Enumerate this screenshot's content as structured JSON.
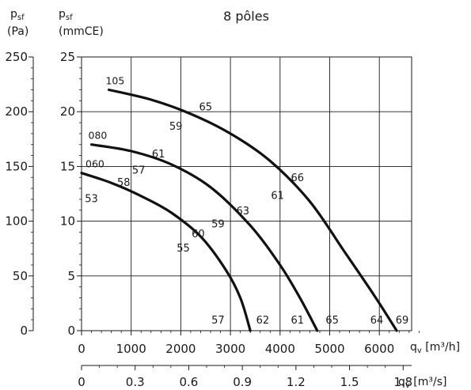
{
  "chart_data": {
    "type": "line",
    "title": "8 pôles",
    "colors": {
      "green": "#2e7d4f",
      "blue": "#3b4fa0",
      "axis": "#1a1a1a",
      "grid": "#1a1a1a"
    },
    "left_axis": {
      "sub": "sf",
      "base": "p",
      "unit": "(Pa)",
      "ticks": [
        "0",
        "50",
        "100",
        "150",
        "200",
        "250"
      ]
    },
    "right_y_axis": {
      "base": "p",
      "sub": "sf",
      "unit": "(mmCE)",
      "ylim": [
        0,
        25
      ],
      "ticks": [
        "0",
        "5",
        "10",
        "15",
        "20",
        "25"
      ]
    },
    "x_axis_top": {
      "base": "q",
      "sub": "v",
      "unit": "[m³/h]",
      "xlim": [
        0,
        7000
      ],
      "ticks": [
        "0",
        "1000",
        "2000",
        "3000",
        "4000",
        "5000",
        "6000"
      ]
    },
    "x_axis_bottom": {
      "base": "q",
      "sub": "v",
      "unit": "[m³/s]",
      "ticks": [
        "0",
        "0.3",
        "0.6",
        "0.9",
        "1.2",
        "1.5",
        "1.8"
      ]
    },
    "grid": true,
    "series": [
      {
        "name": "060",
        "points": [
          [
            0,
            14.4
          ],
          [
            600,
            13.5
          ],
          [
            1200,
            12.3
          ],
          [
            1800,
            10.8
          ],
          [
            2400,
            8.6
          ],
          [
            2900,
            5.6
          ],
          [
            3200,
            3.0
          ],
          [
            3400,
            0
          ]
        ]
      },
      {
        "name": "080",
        "points": [
          [
            200,
            17.0
          ],
          [
            1000,
            16.4
          ],
          [
            1800,
            15.2
          ],
          [
            2600,
            13.1
          ],
          [
            3400,
            9.6
          ],
          [
            4000,
            6.0
          ],
          [
            4400,
            3.0
          ],
          [
            4750,
            0
          ]
        ]
      },
      {
        "name": "105",
        "points": [
          [
            550,
            22.0
          ],
          [
            1400,
            21.1
          ],
          [
            2200,
            19.8
          ],
          [
            3000,
            18.0
          ],
          [
            3800,
            15.5
          ],
          [
            4600,
            11.8
          ],
          [
            5300,
            7.2
          ],
          [
            5900,
            3.2
          ],
          [
            6350,
            0
          ]
        ]
      }
    ],
    "sound_levels": [
      {
        "text": "53",
        "color": "green",
        "x": 200,
        "y": 12.1
      },
      {
        "text": "58",
        "color": "blue",
        "x": 850,
        "y": 13.6
      },
      {
        "text": "57",
        "color": "green",
        "x": 1150,
        "y": 14.7
      },
      {
        "text": "61",
        "color": "blue",
        "x": 1550,
        "y": 16.2
      },
      {
        "text": "59",
        "color": "green",
        "x": 1900,
        "y": 18.7
      },
      {
        "text": "65",
        "color": "blue",
        "x": 2500,
        "y": 20.5
      },
      {
        "text": "60",
        "color": "blue",
        "x": 2350,
        "y": 8.9
      },
      {
        "text": "55",
        "color": "green",
        "x": 2050,
        "y": 7.6
      },
      {
        "text": "59",
        "color": "green",
        "x": 2750,
        "y": 9.8
      },
      {
        "text": "63",
        "color": "blue",
        "x": 3250,
        "y": 11.0
      },
      {
        "text": "61",
        "color": "green",
        "x": 3950,
        "y": 12.4
      },
      {
        "text": "66",
        "color": "blue",
        "x": 4350,
        "y": 14.0
      },
      {
        "text": "57",
        "color": "green",
        "x": 2750,
        "y": 1.0
      },
      {
        "text": "62",
        "color": "blue",
        "x": 3650,
        "y": 1.0
      },
      {
        "text": "61",
        "color": "green",
        "x": 4350,
        "y": 1.0
      },
      {
        "text": "65",
        "color": "blue",
        "x": 5050,
        "y": 1.0
      },
      {
        "text": "64",
        "color": "green",
        "x": 5950,
        "y": 1.0
      },
      {
        "text": "69",
        "color": "blue",
        "x": 6700,
        "y": 1.0
      }
    ]
  }
}
